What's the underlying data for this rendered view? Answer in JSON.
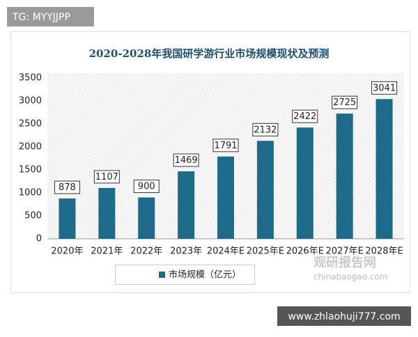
{
  "tag": "TG: MYYJJPP",
  "footer_tag": "www.zhlaohuji777.com",
  "watermark": {
    "name": "观研报告网",
    "site": "chinabaogao.com"
  },
  "chart_data": {
    "type": "bar",
    "title": "2020-2028年我国研学游行业市场规模现状及预测",
    "categories": [
      "2020年",
      "2021年",
      "2022年",
      "2023年",
      "2024年E",
      "2025年E",
      "2026年E",
      "2027年E",
      "2028年E"
    ],
    "series": [
      {
        "name": "市场规模（亿元）",
        "color": "#1d6a89",
        "values": [
          878,
          1107,
          900,
          1469,
          1791,
          2132,
          2422,
          2725,
          3041
        ]
      }
    ],
    "ylim": [
      0,
      3500
    ],
    "yticks": [
      0,
      500,
      1000,
      1500,
      2000,
      2500,
      3000,
      3500
    ],
    "grid": false,
    "legend": "bottom"
  }
}
